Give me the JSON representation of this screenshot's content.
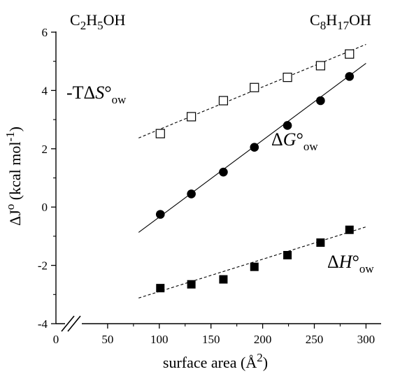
{
  "chart_data": {
    "type": "scatter",
    "xlabel": "surface area  (Å",
    "xlabel_sup": "2",
    "xlabel_close": ")",
    "ylabel": "ΔJ",
    "ylabel_sup": "o",
    "ylabel_rest": " (kcal mol",
    "ylabel_exp": "-1",
    "ylabel_close": ")",
    "xlim": [
      0,
      320
    ],
    "ylim": [
      -4,
      6
    ],
    "x_ticks": [
      "0",
      "50",
      "100",
      "150",
      "200",
      "250",
      "300"
    ],
    "y_ticks": [
      "-4",
      "-2",
      "0",
      "2",
      "4",
      "6"
    ],
    "axis_break": true,
    "annotations": {
      "left_formula": {
        "a": "C",
        "b": "2",
        "c": "H",
        "d": "5",
        "e": "OH"
      },
      "right_formula": {
        "a": "C",
        "b": "8",
        "c": "H",
        "d": "17",
        "e": "OH"
      }
    },
    "series": [
      {
        "key": "TS",
        "label_prefix": "-TΔ",
        "label_var": "S",
        "label_deg": "°",
        "label_sub": "ow",
        "marker": "open-square",
        "line": "dashed",
        "x": [
          101,
          131,
          162,
          192,
          224,
          256,
          284
        ],
        "y": [
          2.52,
          3.1,
          3.65,
          4.1,
          4.45,
          4.85,
          5.25
        ],
        "fit": [
          [
            80,
            2.37
          ],
          [
            300,
            5.58
          ]
        ]
      },
      {
        "key": "G",
        "label_prefix": "Δ",
        "label_var": "G",
        "label_deg": "°",
        "label_sub": "ow",
        "marker": "filled-circle",
        "line": "solid",
        "x": [
          101,
          131,
          162,
          192,
          224,
          256,
          284
        ],
        "y": [
          -0.25,
          0.45,
          1.2,
          2.05,
          2.8,
          3.65,
          4.48
        ],
        "fit": [
          [
            80,
            -0.87
          ],
          [
            300,
            4.93
          ]
        ]
      },
      {
        "key": "H",
        "label_prefix": "Δ",
        "label_var": "H",
        "label_deg": "°",
        "label_sub": "ow",
        "marker": "filled-square",
        "line": "dashed",
        "x": [
          101,
          131,
          162,
          192,
          224,
          256,
          284
        ],
        "y": [
          -2.78,
          -2.65,
          -2.48,
          -2.05,
          -1.65,
          -1.22,
          -0.78
        ],
        "fit": [
          [
            80,
            -3.12
          ],
          [
            300,
            -0.68
          ]
        ]
      }
    ]
  }
}
